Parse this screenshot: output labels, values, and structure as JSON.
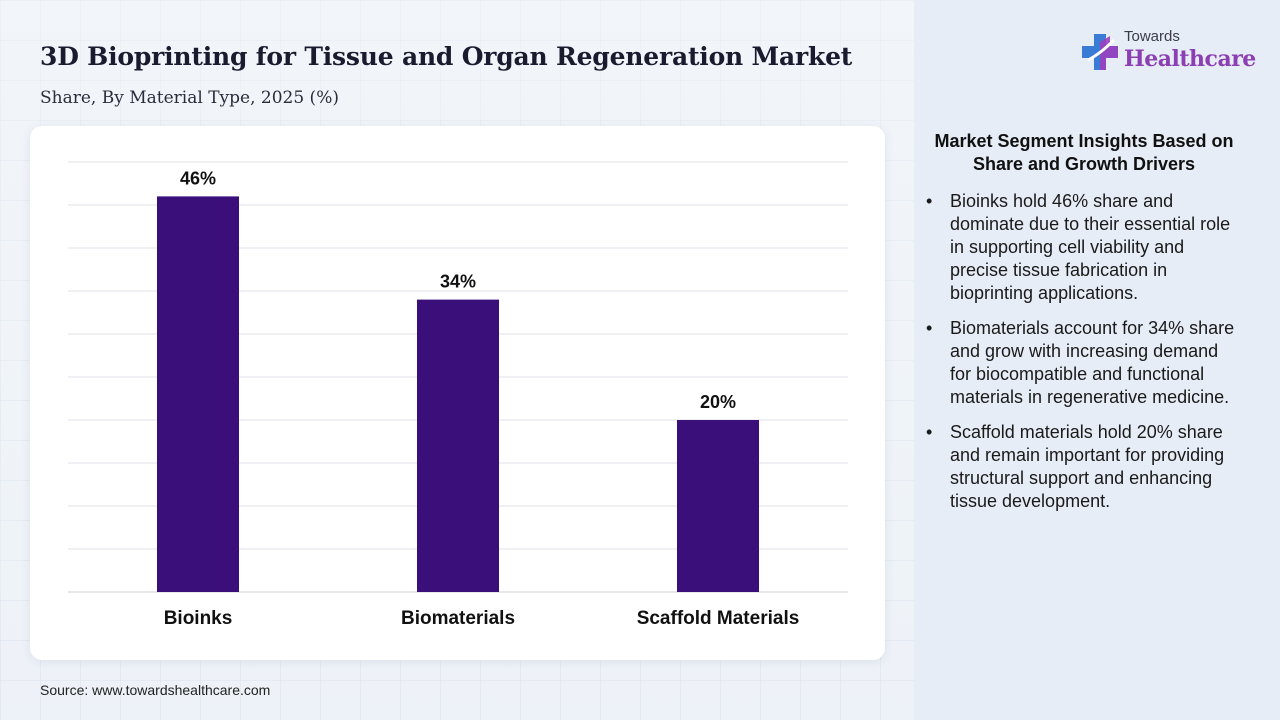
{
  "header": {
    "title": "3D Bioprinting for Tissue and Organ Regeneration Market",
    "subtitle": "Share, By Material Type, 2025 (%)"
  },
  "logo": {
    "top_text": "Towards",
    "main_text": "Healthcare",
    "icon": "medical-cross-icon",
    "colors": {
      "cross_blue": "#3a7bd5",
      "cross_purple": "#9b3fbf",
      "text": "#8b3fb3"
    }
  },
  "chart_data": {
    "type": "bar",
    "categories": [
      "Bioinks",
      "Biomaterials",
      "Scaffold Materials"
    ],
    "values": [
      46,
      34,
      20
    ],
    "value_labels": [
      "46%",
      "34%",
      "20%"
    ],
    "ylim": [
      0,
      50
    ],
    "grid": true,
    "bar_color": "#3b0f7a"
  },
  "insights": {
    "title": "Market Segment Insights Based on Share and Growth Drivers",
    "items": [
      "Bioinks hold 46% share and dominate due to their essential role in supporting cell viability and precise tissue fabrication in bioprinting applications.",
      "Biomaterials account for 34% share and grow with increasing demand for biocompatible and functional materials in regenerative medicine.",
      "Scaffold materials hold 20% share and remain important for providing structural support and enhancing tissue development."
    ]
  },
  "footer": {
    "source": "Source: www.towardshealthcare.com"
  }
}
